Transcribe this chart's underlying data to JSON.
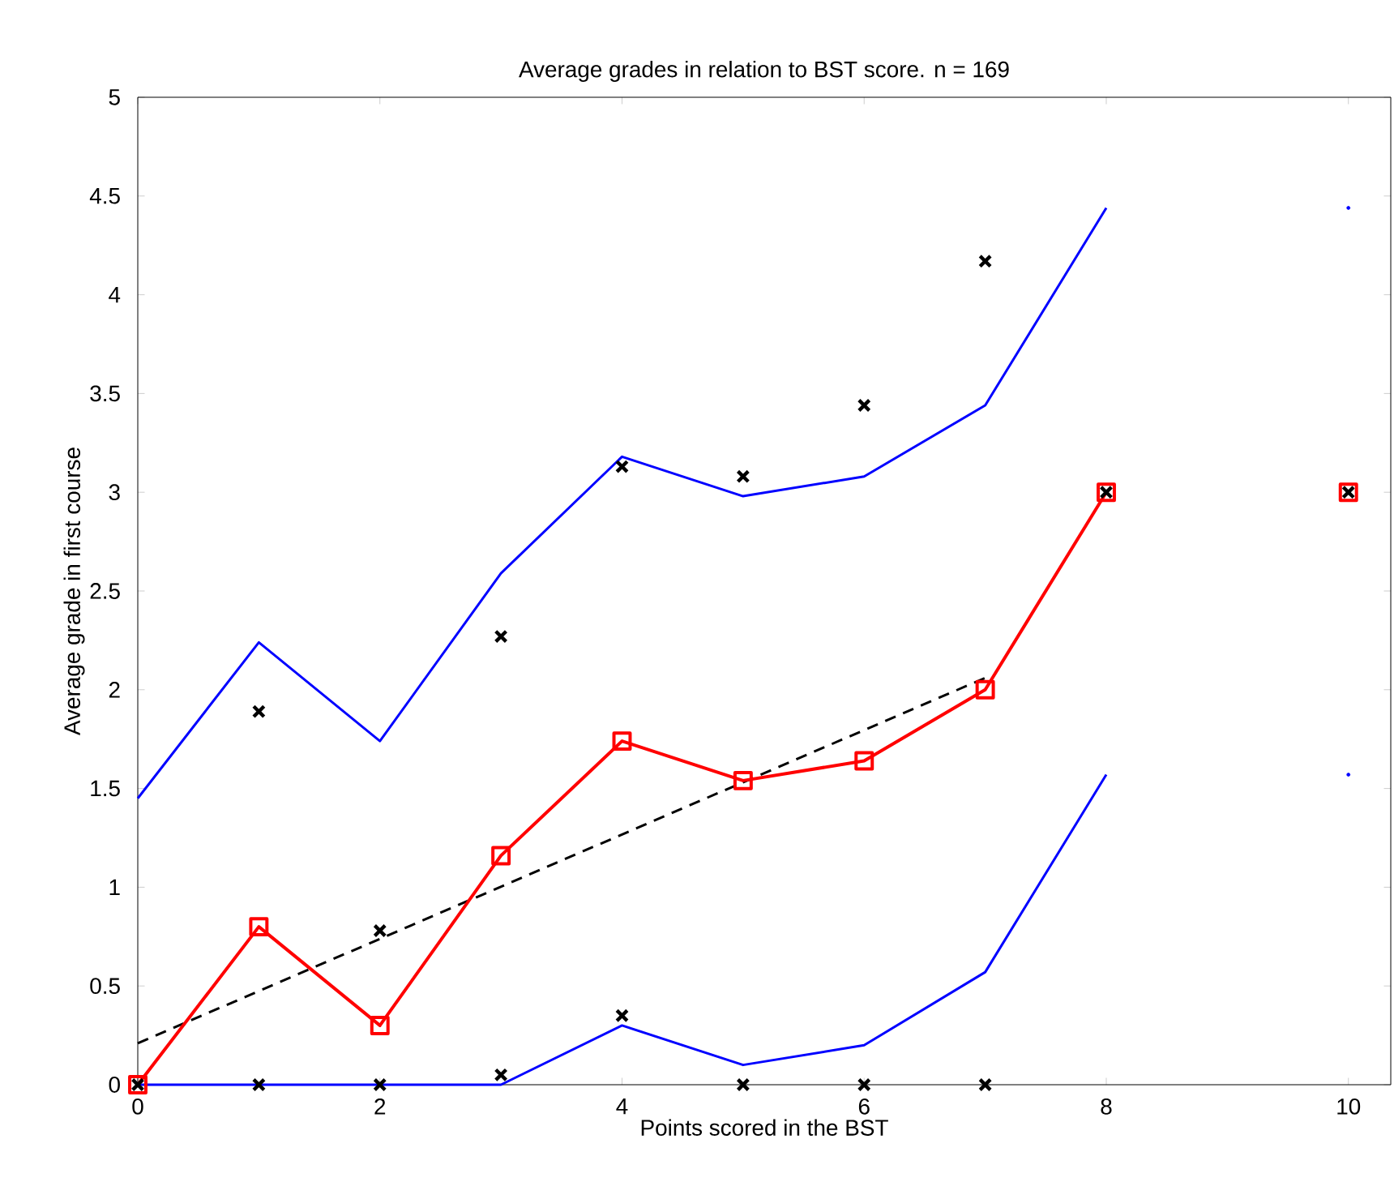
{
  "chart_data": {
    "type": "line",
    "title": "Average grades in relation to BST score. n = 169",
    "xlabel": "Points scored in the BST",
    "ylabel": "Average grade in first course",
    "xlim": [
      0,
      10.35
    ],
    "ylim": [
      0,
      5
    ],
    "xticks": [
      0,
      2,
      4,
      6,
      8,
      10
    ],
    "yticks": [
      0,
      0.5,
      1,
      1.5,
      2,
      2.5,
      3,
      3.5,
      4,
      4.5,
      5
    ],
    "grid": false,
    "series": [
      {
        "color": "#0000ff",
        "marker": "none",
        "line_style": "solid",
        "x": [
          0,
          1,
          2,
          3,
          4,
          5,
          6,
          7,
          8,
          9,
          10
        ],
        "values": [
          1.45,
          2.24,
          1.74,
          2.59,
          3.18,
          2.98,
          3.08,
          3.44,
          4.44,
          null,
          4.44
        ]
      },
      {
        "color": "#0000ff",
        "marker": "none",
        "line_style": "solid",
        "x": [
          0,
          1,
          2,
          3,
          4,
          5,
          6,
          7,
          8,
          9,
          10
        ],
        "values": [
          0,
          0,
          0,
          0,
          0.3,
          0.1,
          0.2,
          0.57,
          1.57,
          null,
          1.57
        ]
      },
      {
        "color": "#000000",
        "marker": "none",
        "line_style": "dashed",
        "x": [
          0,
          7
        ],
        "values": [
          0.21,
          2.06
        ]
      },
      {
        "color": "#ff0000",
        "marker": "square",
        "line_style": "solid",
        "x": [
          0,
          1,
          2,
          3,
          4,
          5,
          6,
          7,
          8,
          9,
          10
        ],
        "values": [
          0,
          0.8,
          0.3,
          1.16,
          1.74,
          1.54,
          1.64,
          2.0,
          3.0,
          null,
          3.0
        ]
      },
      {
        "type": "scatter",
        "color": "#000000",
        "marker": "cross",
        "x": [
          0,
          1,
          1,
          2,
          2,
          3,
          3,
          4,
          4,
          5,
          5,
          6,
          6,
          7,
          7,
          8,
          10
        ],
        "values": [
          0,
          1.89,
          0,
          0.78,
          0,
          2.27,
          0.05,
          3.13,
          0.35,
          3.08,
          0,
          3.44,
          0,
          4.17,
          0,
          3.0,
          3.0
        ]
      }
    ]
  }
}
